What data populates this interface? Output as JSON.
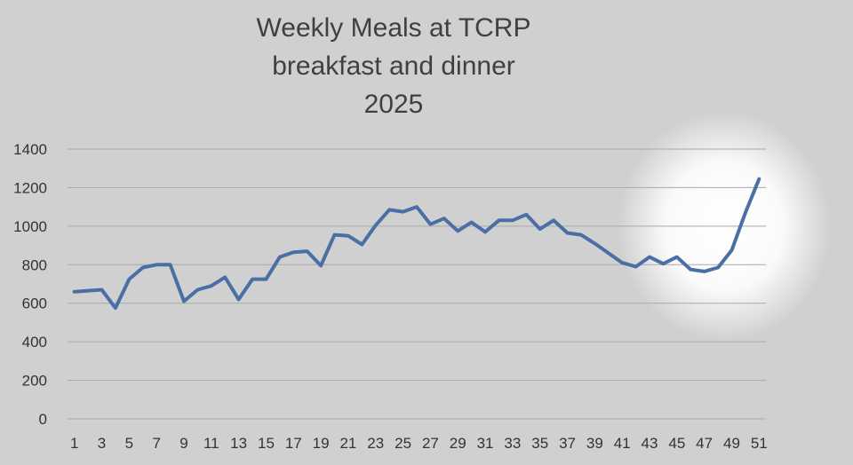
{
  "chart_data": {
    "type": "line",
    "title": [
      "Weekly Meals at TCRP",
      "breakfast and dinner",
      "2025"
    ],
    "xlabel": "",
    "ylabel": "",
    "ylim": [
      0,
      1400
    ],
    "yticks": [
      0,
      200,
      400,
      600,
      800,
      1000,
      1200,
      1400
    ],
    "xticks": [
      1,
      3,
      5,
      7,
      9,
      11,
      13,
      15,
      17,
      19,
      21,
      23,
      25,
      27,
      29,
      31,
      33,
      35,
      37,
      39,
      41,
      43,
      45,
      47,
      49,
      51
    ],
    "grid": true,
    "legend": "none",
    "x": [
      1,
      2,
      3,
      4,
      5,
      6,
      7,
      8,
      9,
      10,
      11,
      12,
      13,
      14,
      15,
      16,
      17,
      18,
      19,
      20,
      21,
      22,
      23,
      24,
      25,
      26,
      27,
      28,
      29,
      30,
      31,
      32,
      33,
      34,
      35,
      36,
      37,
      38,
      39,
      40,
      41,
      42,
      43,
      44,
      45,
      46,
      47,
      48,
      49,
      50,
      51
    ],
    "series": [
      {
        "color": "#4a6fa5",
        "values": [
          660,
          665,
          670,
          575,
          725,
          785,
          800,
          800,
          610,
          670,
          690,
          735,
          620,
          725,
          725,
          840,
          865,
          870,
          795,
          955,
          950,
          905,
          1005,
          1085,
          1075,
          1100,
          1010,
          1040,
          975,
          1020,
          970,
          1030,
          1030,
          1060,
          985,
          1030,
          965,
          955,
          910,
          860,
          810,
          790,
          840,
          805,
          840,
          775,
          765,
          785,
          875,
          1070,
          1245
        ]
      }
    ]
  }
}
